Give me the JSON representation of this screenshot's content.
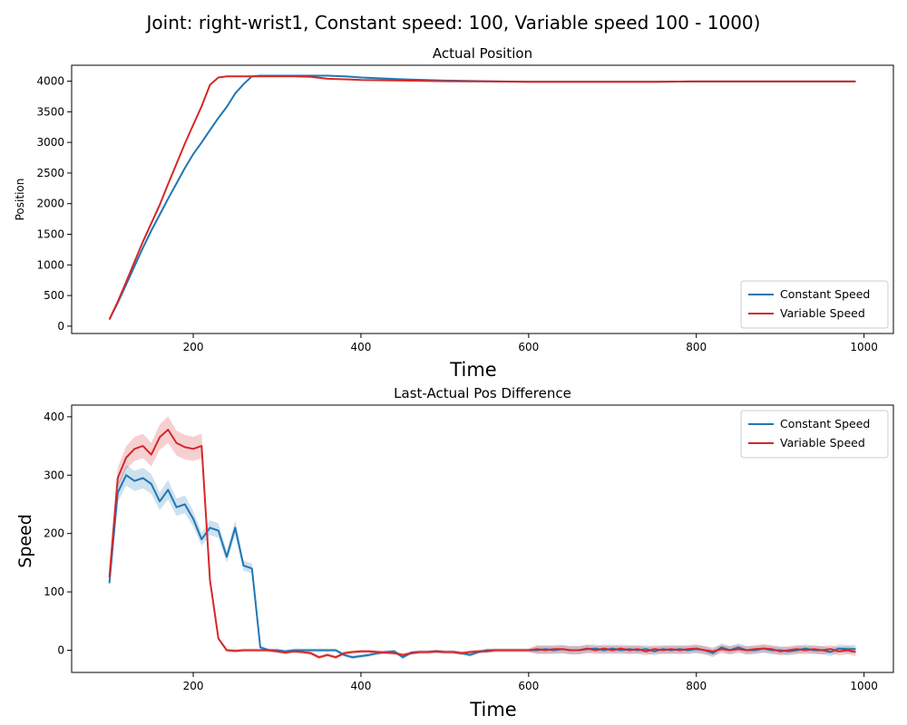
{
  "figure_title": "Joint: right-wrist1, Constant speed: 100, Variable speed 100 - 1000)",
  "colors": {
    "constant": "#1f77b4",
    "variable": "#d62728"
  },
  "chart_data": [
    {
      "type": "line",
      "title": "Actual Position",
      "xlabel": "Time",
      "ylabel": "Position",
      "xlim": [
        55,
        1035
      ],
      "ylim": [
        -120,
        4260
      ],
      "xticks": [
        200,
        400,
        600,
        800,
        1000
      ],
      "yticks": [
        0,
        500,
        1000,
        1500,
        2000,
        2500,
        3000,
        3500,
        4000
      ],
      "legend": "lower-right",
      "x": [
        100,
        110,
        120,
        130,
        140,
        150,
        160,
        170,
        180,
        190,
        200,
        210,
        220,
        230,
        240,
        250,
        260,
        270,
        280,
        290,
        300,
        320,
        340,
        360,
        380,
        400,
        450,
        500,
        550,
        600,
        650,
        700,
        750,
        800,
        850,
        900,
        950,
        990
      ],
      "series": [
        {
          "name": "Constant Speed",
          "color": "#1f77b4",
          "values": [
            110,
            380,
            680,
            980,
            1280,
            1560,
            1820,
            2080,
            2330,
            2580,
            2810,
            3000,
            3200,
            3400,
            3580,
            3800,
            3950,
            4080,
            4090,
            4090,
            4090,
            4090,
            4090,
            4090,
            4080,
            4060,
            4030,
            4010,
            4000,
            3990,
            3990,
            3990,
            3990,
            3995,
            3995,
            3995,
            3995,
            3995
          ]
        },
        {
          "name": "Variable Speed",
          "color": "#d62728",
          "values": [
            110,
            400,
            720,
            1050,
            1380,
            1680,
            1980,
            2320,
            2650,
            2980,
            3290,
            3590,
            3940,
            4060,
            4080,
            4080,
            4080,
            4080,
            4080,
            4080,
            4080,
            4080,
            4070,
            4040,
            4030,
            4020,
            4010,
            4000,
            3995,
            3990,
            3990,
            3990,
            3990,
            3995,
            3995,
            3995,
            3995,
            3995
          ]
        }
      ]
    },
    {
      "type": "line",
      "title": "Last-Actual Pos Difference",
      "xlabel": "Time",
      "ylabel": "Speed",
      "xlim": [
        55,
        1035
      ],
      "ylim": [
        -38,
        420
      ],
      "xticks": [
        200,
        400,
        600,
        800,
        1000
      ],
      "yticks": [
        0,
        100,
        200,
        300,
        400
      ],
      "legend": "upper-right",
      "x": [
        100,
        110,
        120,
        130,
        140,
        150,
        160,
        170,
        180,
        190,
        200,
        210,
        220,
        230,
        240,
        250,
        260,
        270,
        280,
        290,
        300,
        310,
        320,
        330,
        340,
        350,
        360,
        370,
        380,
        390,
        400,
        410,
        420,
        430,
        440,
        450,
        460,
        470,
        480,
        490,
        500,
        510,
        520,
        530,
        540,
        550,
        560,
        570,
        580,
        590,
        600,
        610,
        620,
        630,
        640,
        650,
        660,
        670,
        680,
        690,
        700,
        710,
        720,
        730,
        740,
        750,
        760,
        770,
        780,
        790,
        800,
        810,
        820,
        830,
        840,
        850,
        860,
        870,
        880,
        890,
        900,
        910,
        920,
        930,
        940,
        950,
        960,
        970,
        980,
        990
      ],
      "series": [
        {
          "name": "Constant Speed",
          "color": "#1f77b4",
          "values": [
            115,
            270,
            300,
            290,
            295,
            285,
            255,
            275,
            245,
            250,
            225,
            190,
            210,
            205,
            160,
            210,
            145,
            140,
            5,
            0,
            0,
            -2,
            0,
            0,
            0,
            0,
            0,
            0,
            -8,
            -12,
            -10,
            -8,
            -5,
            -3,
            -2,
            -12,
            -4,
            -3,
            -3,
            -2,
            -3,
            -3,
            -5,
            -8,
            -3,
            0,
            0,
            0,
            0,
            0,
            0,
            0,
            2,
            0,
            2,
            0,
            0,
            2,
            3,
            0,
            3,
            0,
            2,
            0,
            2,
            -2,
            2,
            0,
            2,
            0,
            2,
            0,
            -5,
            5,
            0,
            5,
            0,
            0,
            3,
            0,
            0,
            -2,
            0,
            3,
            0,
            0,
            -3,
            3,
            2,
            2
          ]
        },
        {
          "name": "Variable Speed",
          "color": "#d62728",
          "values": [
            125,
            295,
            330,
            345,
            350,
            335,
            365,
            378,
            355,
            348,
            345,
            350,
            120,
            20,
            0,
            -1,
            0,
            0,
            0,
            0,
            -2,
            -4,
            -2,
            -3,
            -5,
            -12,
            -8,
            -12,
            -5,
            -3,
            -2,
            -2,
            -3,
            -4,
            -5,
            -8,
            -5,
            -3,
            -3,
            -2,
            -3,
            -3,
            -5,
            -3,
            -2,
            -2,
            0,
            0,
            0,
            0,
            0,
            2,
            0,
            2,
            2,
            0,
            0,
            3,
            0,
            3,
            0,
            3,
            0,
            2,
            -2,
            2,
            0,
            2,
            0,
            2,
            3,
            0,
            -2,
            2,
            0,
            2,
            0,
            2,
            3,
            2,
            -2,
            0,
            2,
            0,
            2,
            0,
            2,
            -2,
            0,
            -3
          ]
        }
      ]
    }
  ]
}
